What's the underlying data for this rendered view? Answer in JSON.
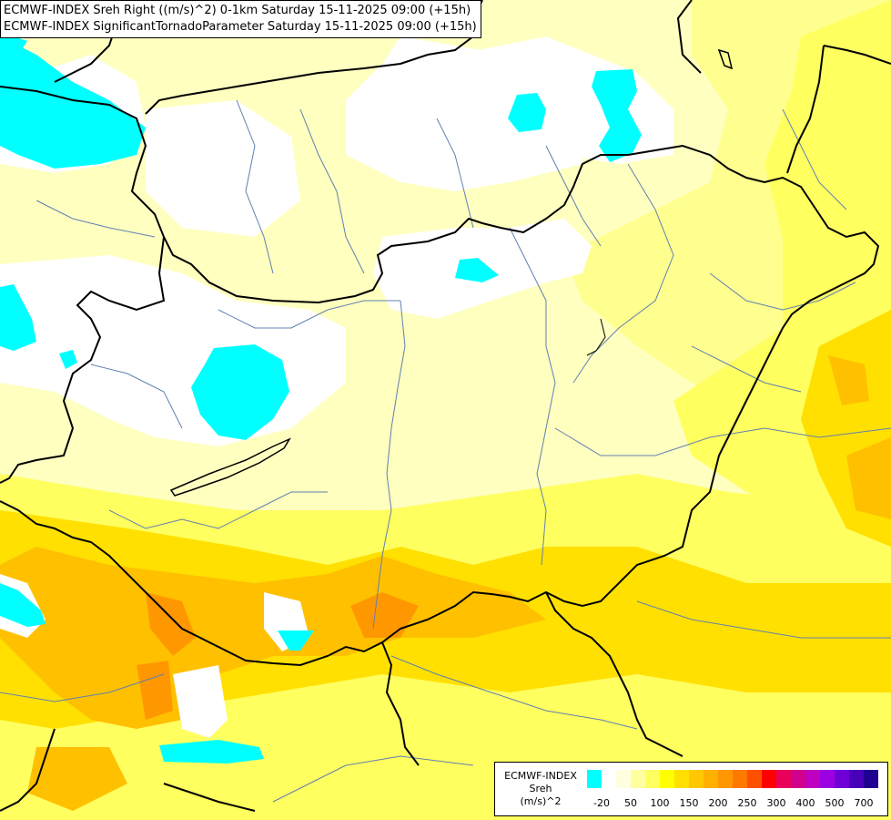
{
  "header": {
    "line1": "ECMWF-INDEX Sreh Right ((m/s)^2) 0-1km Saturday 15-11-2025 09:00 (+15h)",
    "line2": "ECMWF-INDEX SignificantTornadoParameter Saturday 15-11-2025 09:00 (+15h)"
  },
  "legend": {
    "title1": "ECMWF-INDEX",
    "title2": "Sreh",
    "title3": "(m/s)^2",
    "colors": [
      "#00ffff",
      "#ffffff",
      "#ffffe0",
      "#ffffa0",
      "#ffff60",
      "#ffff00",
      "#ffe000",
      "#ffc800",
      "#ffb000",
      "#ff9800",
      "#ff7800",
      "#ff5000",
      "#ff0000",
      "#e8005a",
      "#d0008c",
      "#c000c0",
      "#9a00e0",
      "#7000d8",
      "#4800b8",
      "#200090"
    ],
    "ticks": [
      "-20",
      "50",
      "100",
      "150",
      "200",
      "250",
      "300",
      "400",
      "500",
      "700"
    ]
  },
  "map": {
    "colors": {
      "cyan": "#00ffff",
      "white": "#ffffff",
      "pale": "#ffffc0",
      "light_yellow": "#ffff90",
      "yellow": "#ffff00",
      "gold": "#ffe000",
      "orange": "#ffc000",
      "dark_orange": "#ff9800",
      "border": "#000000",
      "river": "#6080b0"
    }
  }
}
